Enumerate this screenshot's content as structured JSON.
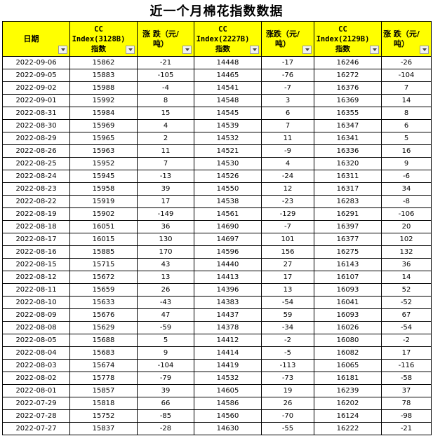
{
  "title": "近一个月棉花指数数据",
  "headers": {
    "date": "日期",
    "cc3128b_line1": "CC",
    "cc3128b_line2": "Index(3128B)",
    "cc3128b_line3": "指数",
    "chg1_line1": "涨 跌（元/",
    "chg1_line2": "吨）",
    "cc2227b_line1": "CC",
    "cc2227b_line2": "Index(2227B)",
    "cc2227b_line3": "指数",
    "chg2_line1": "涨跌（元/",
    "chg2_line2": "吨）",
    "cc2129b_line1": "CC",
    "cc2129b_line2": "Index(2129B)",
    "cc2129b_line3": "指数",
    "chg3_line1": "涨 跌（元/",
    "chg3_line2": "吨）"
  },
  "colors": {
    "header_bg": "#ffff00",
    "up": "#e00000",
    "down": "#0070c0"
  },
  "rows": [
    [
      "2022-09-06",
      "15862",
      "-21",
      "14448",
      "-17",
      "16246",
      "-26"
    ],
    [
      "2022-09-05",
      "15883",
      "-105",
      "14465",
      "-76",
      "16272",
      "-104"
    ],
    [
      "2022-09-02",
      "15988",
      "-4",
      "14541",
      "-7",
      "16376",
      "7"
    ],
    [
      "2022-09-01",
      "15992",
      "8",
      "14548",
      "3",
      "16369",
      "14"
    ],
    [
      "2022-08-31",
      "15984",
      "15",
      "14545",
      "6",
      "16355",
      "8"
    ],
    [
      "2022-08-30",
      "15969",
      "4",
      "14539",
      "7",
      "16347",
      "6"
    ],
    [
      "2022-08-29",
      "15965",
      "2",
      "14532",
      "11",
      "16341",
      "5"
    ],
    [
      "2022-08-26",
      "15963",
      "11",
      "14521",
      "-9",
      "16336",
      "16"
    ],
    [
      "2022-08-25",
      "15952",
      "7",
      "14530",
      "4",
      "16320",
      "9"
    ],
    [
      "2022-08-24",
      "15945",
      "-13",
      "14526",
      "-24",
      "16311",
      "-6"
    ],
    [
      "2022-08-23",
      "15958",
      "39",
      "14550",
      "12",
      "16317",
      "34"
    ],
    [
      "2022-08-22",
      "15919",
      "17",
      "14538",
      "-23",
      "16283",
      "-8"
    ],
    [
      "2022-08-19",
      "15902",
      "-149",
      "14561",
      "-129",
      "16291",
      "-106"
    ],
    [
      "2022-08-18",
      "16051",
      "36",
      "14690",
      "-7",
      "16397",
      "20"
    ],
    [
      "2022-08-17",
      "16015",
      "130",
      "14697",
      "101",
      "16377",
      "102"
    ],
    [
      "2022-08-16",
      "15885",
      "170",
      "14596",
      "156",
      "16275",
      "132"
    ],
    [
      "2022-08-15",
      "15715",
      "43",
      "14440",
      "27",
      "16143",
      "36"
    ],
    [
      "2022-08-12",
      "15672",
      "13",
      "14413",
      "17",
      "16107",
      "14"
    ],
    [
      "2022-08-11",
      "15659",
      "26",
      "14396",
      "13",
      "16093",
      "52"
    ],
    [
      "2022-08-10",
      "15633",
      "-43",
      "14383",
      "-54",
      "16041",
      "-52"
    ],
    [
      "2022-08-09",
      "15676",
      "47",
      "14437",
      "59",
      "16093",
      "67"
    ],
    [
      "2022-08-08",
      "15629",
      "-59",
      "14378",
      "-34",
      "16026",
      "-54"
    ],
    [
      "2022-08-05",
      "15688",
      "5",
      "14412",
      "-2",
      "16080",
      "-2"
    ],
    [
      "2022-08-04",
      "15683",
      "9",
      "14414",
      "-5",
      "16082",
      "17"
    ],
    [
      "2022-08-03",
      "15674",
      "-104",
      "14419",
      "-113",
      "16065",
      "-116"
    ],
    [
      "2022-08-02",
      "15778",
      "-79",
      "14532",
      "-73",
      "16181",
      "-58"
    ],
    [
      "2022-08-01",
      "15857",
      "39",
      "14605",
      "19",
      "16239",
      "37"
    ],
    [
      "2022-07-29",
      "15818",
      "66",
      "14586",
      "26",
      "16202",
      "78"
    ],
    [
      "2022-07-28",
      "15752",
      "-85",
      "14560",
      "-70",
      "16124",
      "-98"
    ],
    [
      "2022-07-27",
      "15837",
      "-28",
      "14630",
      "-55",
      "16222",
      "-21"
    ]
  ]
}
